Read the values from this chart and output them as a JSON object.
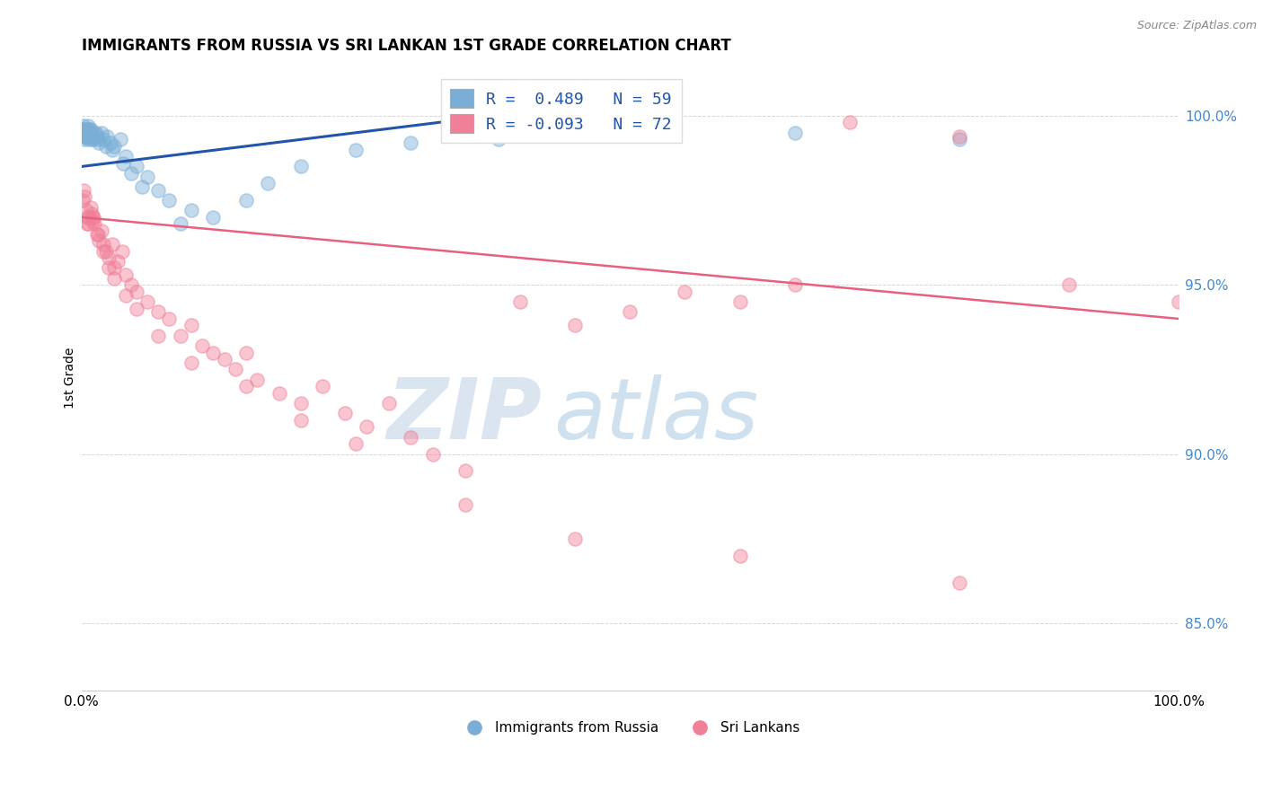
{
  "title": "IMMIGRANTS FROM RUSSIA VS SRI LANKAN 1ST GRADE CORRELATION CHART",
  "source": "Source: ZipAtlas.com",
  "ylabel": "1st Grade",
  "y_ticks": [
    85.0,
    90.0,
    95.0,
    100.0
  ],
  "y_tick_labels": [
    "85.0%",
    "90.0%",
    "95.0%",
    "100.0%"
  ],
  "xlim": [
    0.0,
    100.0
  ],
  "ylim": [
    83.0,
    101.5
  ],
  "legend_r_entries": [
    {
      "label": "R =  0.489   N = 59",
      "color": "#a8c4e0"
    },
    {
      "label": "R = -0.093   N = 72",
      "color": "#f0a0b8"
    }
  ],
  "legend_labels": [
    "Immigrants from Russia",
    "Sri Lankans"
  ],
  "watermark_zip": "ZIP",
  "watermark_atlas": "atlas",
  "blue_color": "#7aaed6",
  "pink_color": "#f08098",
  "blue_line_color": "#2255aa",
  "pink_line_color": "#e86080",
  "dot_size": 120,
  "dot_alpha": 0.45,
  "grid_color": "#cccccc",
  "blue_line_x": [
    0.0,
    40.0
  ],
  "blue_line_y": [
    98.5,
    100.1
  ],
  "pink_line_x": [
    0.0,
    100.0
  ],
  "pink_line_y": [
    97.0,
    94.0
  ],
  "blue_x": [
    0.1,
    0.15,
    0.2,
    0.25,
    0.3,
    0.35,
    0.4,
    0.45,
    0.5,
    0.55,
    0.6,
    0.65,
    0.7,
    0.8,
    0.85,
    0.9,
    1.0,
    1.1,
    1.2,
    1.4,
    1.6,
    1.8,
    2.0,
    2.3,
    2.6,
    3.0,
    3.5,
    4.0,
    5.0,
    6.0,
    7.0,
    8.0,
    10.0,
    12.0,
    15.0,
    17.0,
    20.0,
    25.0,
    30.0,
    38.0,
    50.0,
    65.0,
    80.0,
    0.3,
    0.4,
    0.5,
    0.6,
    0.7,
    0.75,
    0.9,
    1.05,
    1.3,
    1.5,
    2.2,
    2.8,
    3.8,
    4.5,
    5.5,
    9.0
  ],
  "blue_y": [
    99.6,
    99.5,
    99.7,
    99.4,
    99.6,
    99.5,
    99.4,
    99.6,
    99.5,
    99.7,
    99.3,
    99.6,
    99.5,
    99.6,
    99.4,
    99.5,
    99.4,
    99.3,
    99.5,
    99.4,
    99.2,
    99.5,
    99.3,
    99.4,
    99.2,
    99.1,
    99.3,
    98.8,
    98.5,
    98.2,
    97.8,
    97.5,
    97.2,
    97.0,
    97.5,
    98.0,
    98.5,
    99.0,
    99.2,
    99.3,
    99.5,
    99.5,
    99.3,
    99.3,
    99.4,
    99.5,
    99.6,
    99.4,
    99.5,
    99.3,
    99.4,
    99.5,
    99.3,
    99.1,
    99.0,
    98.6,
    98.3,
    97.9,
    96.8
  ],
  "pink_x": [
    0.1,
    0.2,
    0.3,
    0.4,
    0.5,
    0.6,
    0.7,
    0.8,
    0.9,
    1.0,
    1.1,
    1.2,
    1.4,
    1.6,
    1.8,
    2.0,
    2.2,
    2.5,
    2.8,
    3.0,
    3.3,
    3.7,
    4.0,
    4.5,
    5.0,
    6.0,
    7.0,
    8.0,
    9.0,
    10.0,
    11.0,
    12.0,
    13.0,
    14.0,
    15.0,
    16.0,
    18.0,
    20.0,
    22.0,
    24.0,
    26.0,
    28.0,
    30.0,
    32.0,
    35.0,
    40.0,
    45.0,
    50.0,
    55.0,
    60.0,
    65.0,
    70.0,
    80.0,
    90.0,
    100.0,
    0.5,
    1.0,
    1.5,
    2.0,
    2.5,
    3.0,
    4.0,
    5.0,
    7.0,
    10.0,
    15.0,
    20.0,
    25.0,
    35.0,
    45.0,
    60.0,
    80.0
  ],
  "pink_y": [
    97.5,
    97.8,
    97.6,
    97.2,
    97.0,
    96.8,
    97.0,
    97.3,
    97.1,
    96.9,
    97.0,
    96.8,
    96.5,
    96.3,
    96.6,
    96.2,
    96.0,
    95.8,
    96.2,
    95.5,
    95.7,
    96.0,
    95.3,
    95.0,
    94.8,
    94.5,
    94.2,
    94.0,
    93.5,
    93.8,
    93.2,
    93.0,
    92.8,
    92.5,
    93.0,
    92.2,
    91.8,
    91.5,
    92.0,
    91.2,
    90.8,
    91.5,
    90.5,
    90.0,
    89.5,
    94.5,
    93.8,
    94.2,
    94.8,
    94.5,
    95.0,
    99.8,
    99.4,
    95.0,
    94.5,
    96.8,
    97.0,
    96.5,
    96.0,
    95.5,
    95.2,
    94.7,
    94.3,
    93.5,
    92.7,
    92.0,
    91.0,
    90.3,
    88.5,
    87.5,
    87.0,
    86.2
  ]
}
